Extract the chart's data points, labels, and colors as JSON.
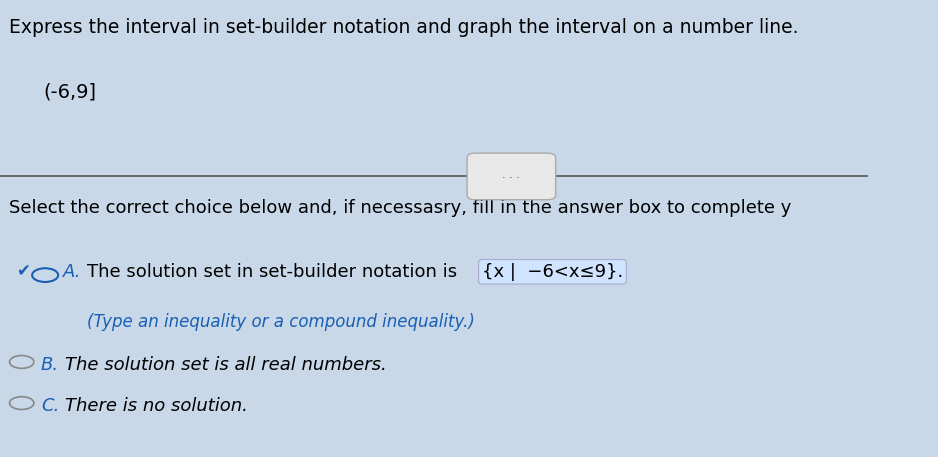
{
  "title_line": "Express the interval in set-builder notation and graph the interval on a number line.",
  "interval_label": "(-6,9]",
  "instruction_line": "Select the correct choice below and, if necessasry, fill in the answer box to complete y",
  "choice_a_prefix": "The solution set in set-builder notation is ",
  "choice_a_set": "{x |  −6<x≤9}.",
  "choice_a_hint": "(Type an inequality or a compound inequality.)",
  "choice_b": "The solution set is all real numbers.",
  "choice_c": "There is no solution.",
  "bg_color": "#c8d8e8",
  "text_color": "#000000",
  "blue_color": "#1a5fb4",
  "selected_radio_color": "#1a5fb4",
  "unselected_radio_color": "#888888",
  "divider_color": "#555555",
  "set_notation_bg": "#d0e4ff"
}
